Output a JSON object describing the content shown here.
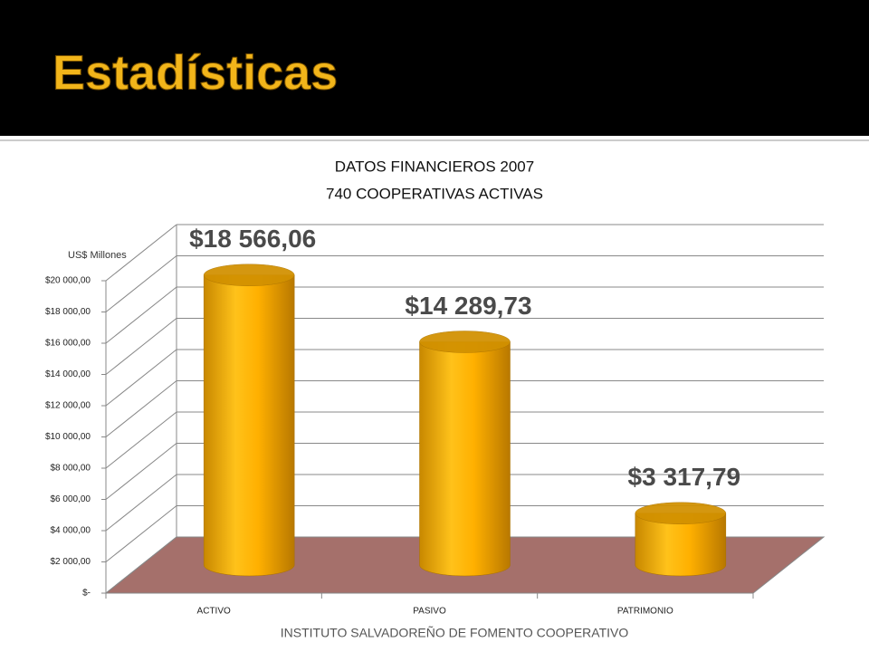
{
  "slide_title": "Estadísticas",
  "footer": "INSTITUTO SALVADOREÑO DE FOMENTO COOPERATIVO",
  "chart_data": {
    "type": "bar",
    "title": "DATOS FINANCIEROS  2007",
    "subtitle": "740 COOPERATIVAS ACTIVAS",
    "y_label": "US$ Millones",
    "categories": [
      "ACTIVO",
      "PASIVO",
      "PATRIMONIO"
    ],
    "values": [
      18566.06,
      14289.73,
      3317.79
    ],
    "value_labels": [
      "$18 566,06",
      "$14 289,73",
      "$3 317,79"
    ],
    "color": "#ffb000",
    "ylim": [
      0,
      20000
    ],
    "yticks": [
      {
        "value": 0,
        "label": "$-"
      },
      {
        "value": 2000,
        "label": "$2 000,00"
      },
      {
        "value": 4000,
        "label": "$4 000,00"
      },
      {
        "value": 6000,
        "label": "$6 000,00"
      },
      {
        "value": 8000,
        "label": "$8 000,00"
      },
      {
        "value": 10000,
        "label": "$10 000,00"
      },
      {
        "value": 12000,
        "label": "$12 000,00"
      },
      {
        "value": 14000,
        "label": "$14 000,00"
      },
      {
        "value": 16000,
        "label": "$16 000,00"
      },
      {
        "value": 18000,
        "label": "$18 000,00"
      },
      {
        "value": 20000,
        "label": "$20 000,00"
      }
    ],
    "grid": true
  }
}
